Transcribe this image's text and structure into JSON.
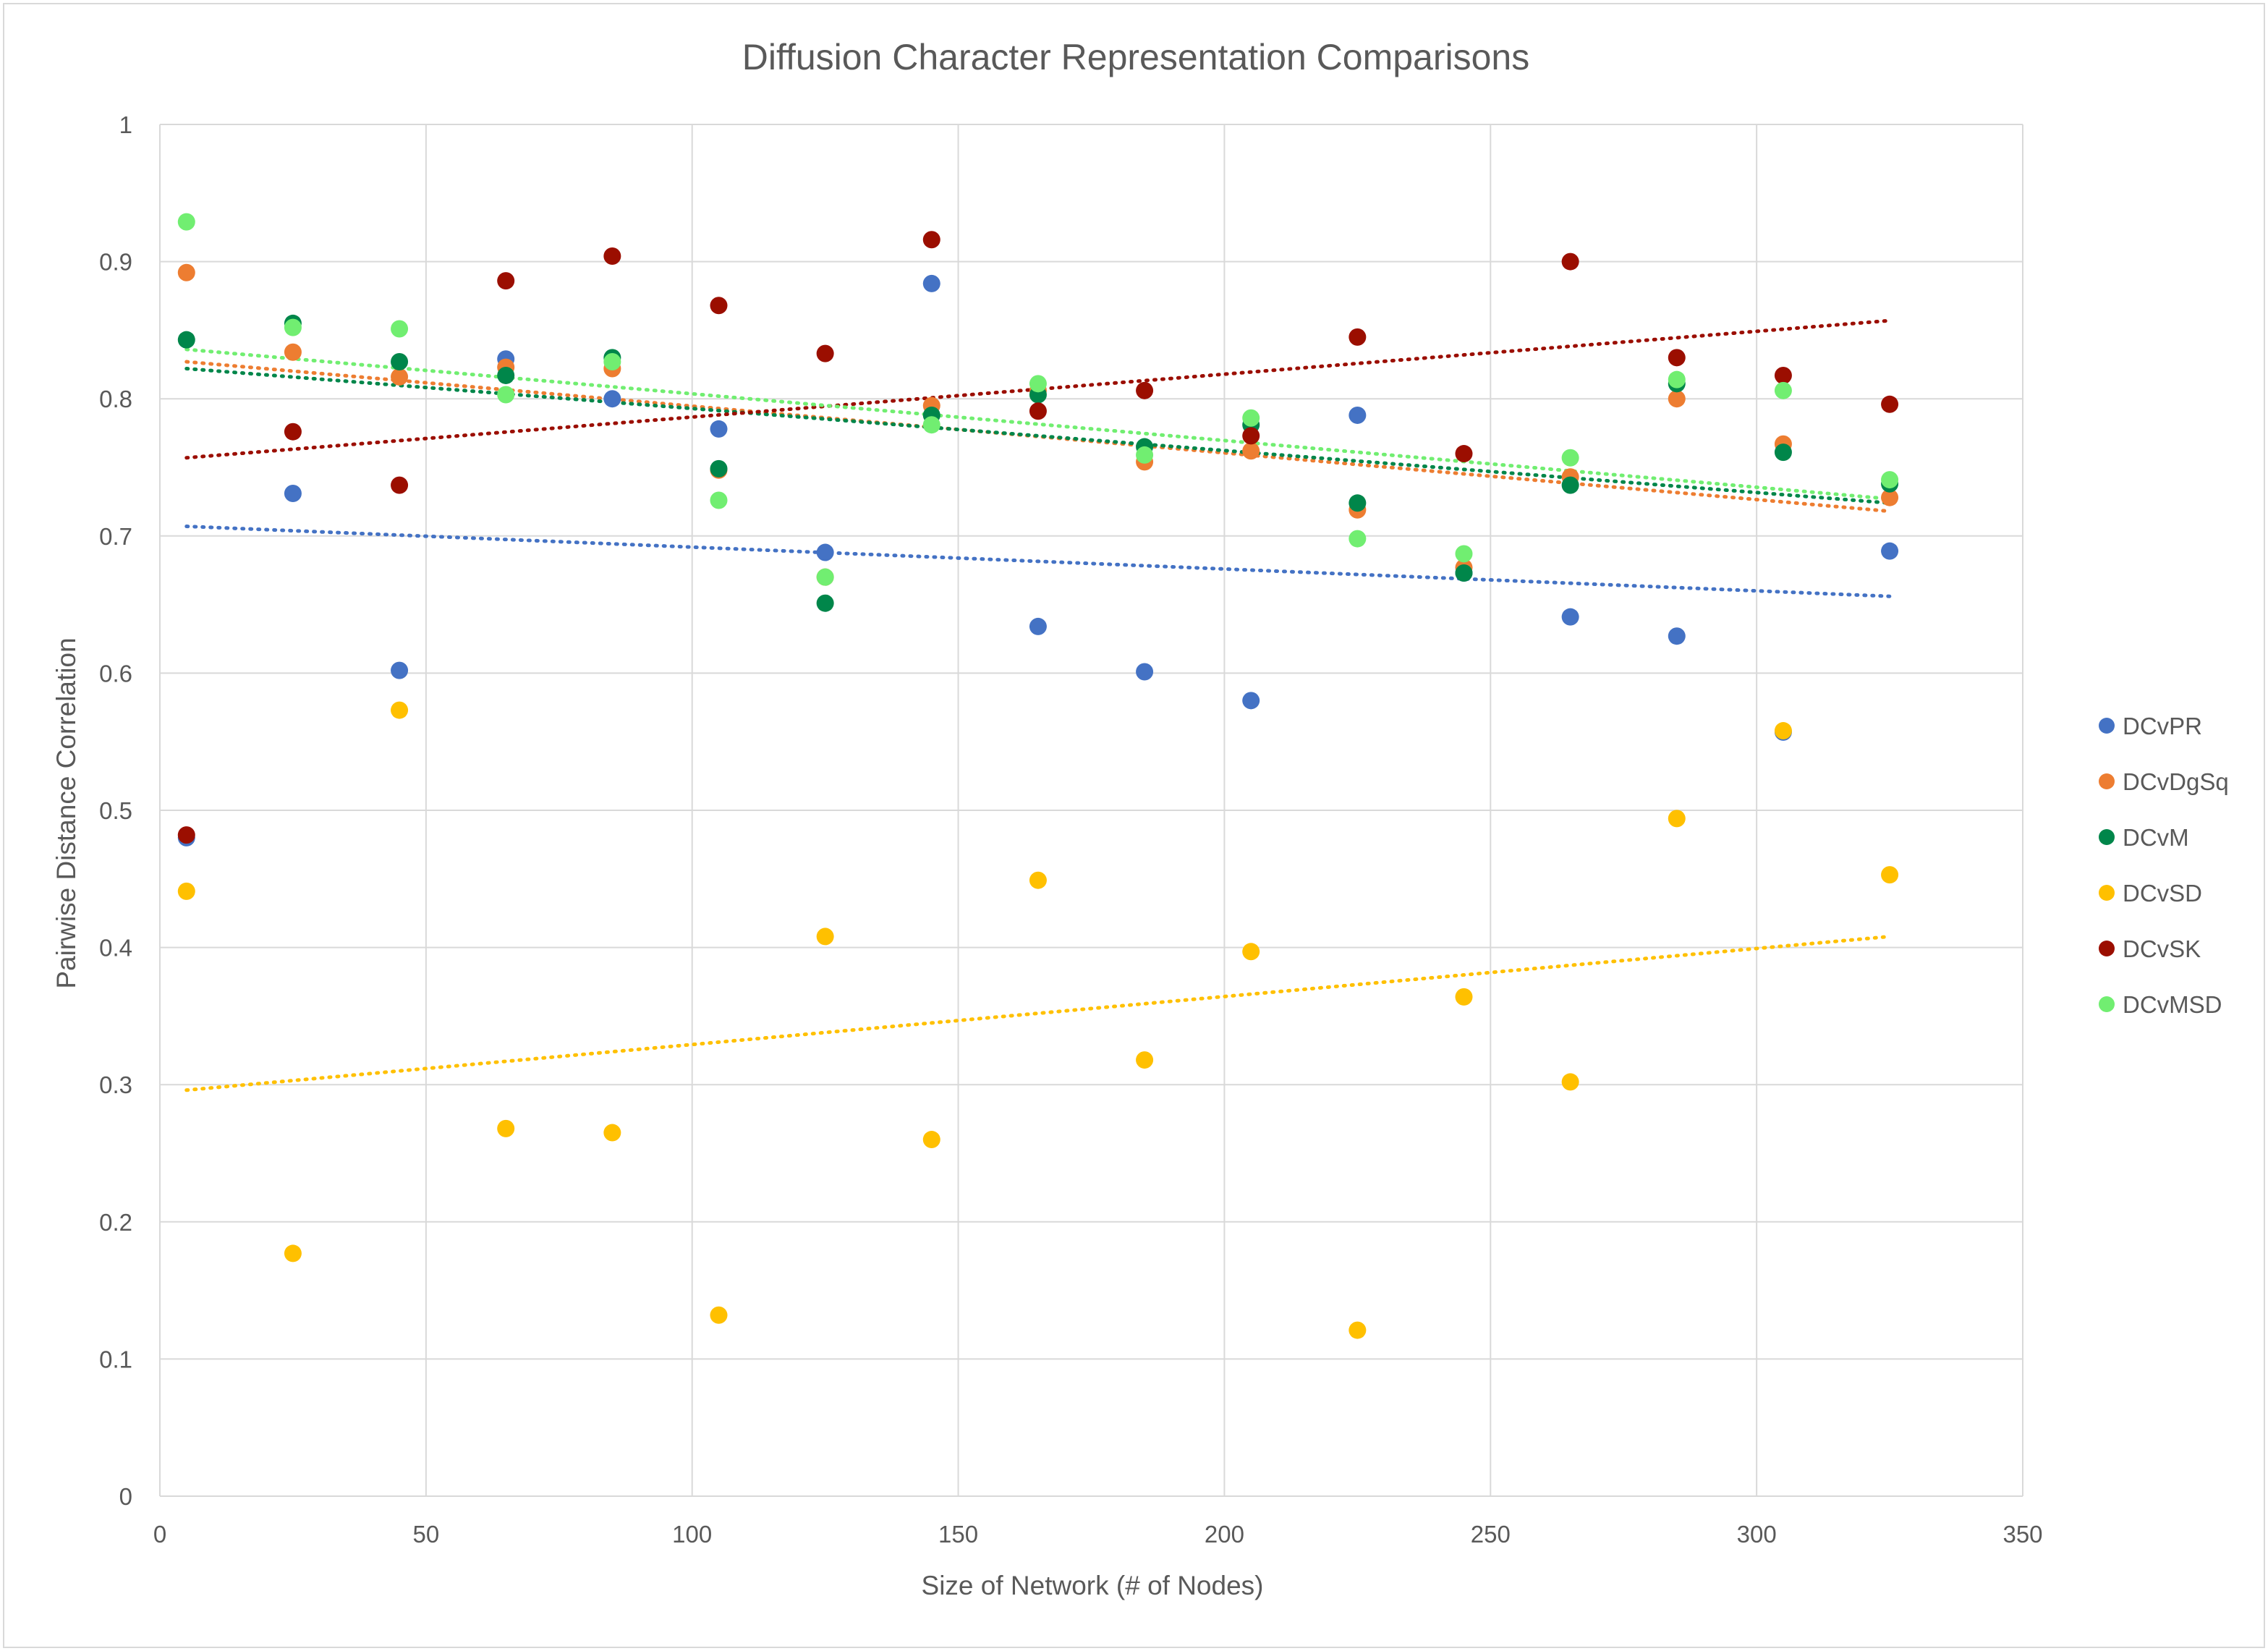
{
  "chart_data": {
    "type": "scatter",
    "title": "Diffusion Character Representation Comparisons",
    "xlabel": "Size of Network (# of Nodes)",
    "ylabel": "Pairwise Distance Correlation",
    "xlim": [
      0,
      350
    ],
    "ylim": [
      0,
      1
    ],
    "x_ticks": [
      "0",
      "50",
      "100",
      "150",
      "200",
      "250",
      "300",
      "350"
    ],
    "y_ticks": [
      "0",
      "0.1",
      "0.2",
      "0.3",
      "0.4",
      "0.5",
      "0.6",
      "0.7",
      "0.8",
      "0.9",
      "1"
    ],
    "grid": true,
    "legend_position": "right",
    "trendlines": "linear, dotted",
    "x": [
      5,
      25,
      45,
      65,
      85,
      105,
      125,
      145,
      165,
      185,
      205,
      225,
      245,
      265,
      285,
      305,
      325
    ],
    "series": [
      {
        "name": "DCvPR",
        "color": "#4472C4",
        "values": [
          0.48,
          0.731,
          0.602,
          0.829,
          0.8,
          0.778,
          0.688,
          0.884,
          0.634,
          0.601,
          0.58,
          0.788,
          0.673,
          0.641,
          0.627,
          0.557,
          0.689
        ],
        "trend": [
          0.707,
          0.656
        ]
      },
      {
        "name": "DCvDgSq",
        "color": "#ED7D31",
        "values": [
          0.892,
          0.834,
          0.816,
          0.823,
          0.822,
          0.748,
          0.67,
          0.795,
          0.806,
          0.754,
          0.762,
          0.719,
          0.677,
          0.743,
          0.8,
          0.767,
          0.728
        ],
        "trend": [
          0.827,
          0.718
        ]
      },
      {
        "name": "DCvM",
        "color": "#00864A",
        "values": [
          0.843,
          0.855,
          0.827,
          0.817,
          0.83,
          0.749,
          0.651,
          0.788,
          0.803,
          0.765,
          0.781,
          0.724,
          0.673,
          0.737,
          0.811,
          0.761,
          0.738
        ],
        "trend": [
          0.822,
          0.724
        ]
      },
      {
        "name": "DCvSD",
        "color": "#FFC000",
        "values": [
          0.441,
          0.177,
          0.573,
          0.268,
          0.265,
          0.132,
          0.408,
          0.26,
          0.449,
          0.318,
          0.397,
          0.121,
          0.364,
          0.302,
          0.494,
          0.558,
          0.453
        ],
        "trend": [
          0.296,
          0.408
        ]
      },
      {
        "name": "DCvSK",
        "color": "#9B0E00",
        "values": [
          0.482,
          0.776,
          0.737,
          0.886,
          0.904,
          0.868,
          0.833,
          0.916,
          0.791,
          0.806,
          0.773,
          0.845,
          0.76,
          0.9,
          0.83,
          0.817,
          0.796
        ],
        "trend": [
          0.757,
          0.857
        ]
      },
      {
        "name": "DCvMSD",
        "color": "#71EE71",
        "values": [
          0.929,
          0.852,
          0.851,
          0.803,
          0.827,
          0.726,
          0.67,
          0.781,
          0.811,
          0.759,
          0.786,
          0.698,
          0.687,
          0.757,
          0.814,
          0.806,
          0.741
        ],
        "trend": [
          0.836,
          0.727
        ]
      }
    ]
  }
}
